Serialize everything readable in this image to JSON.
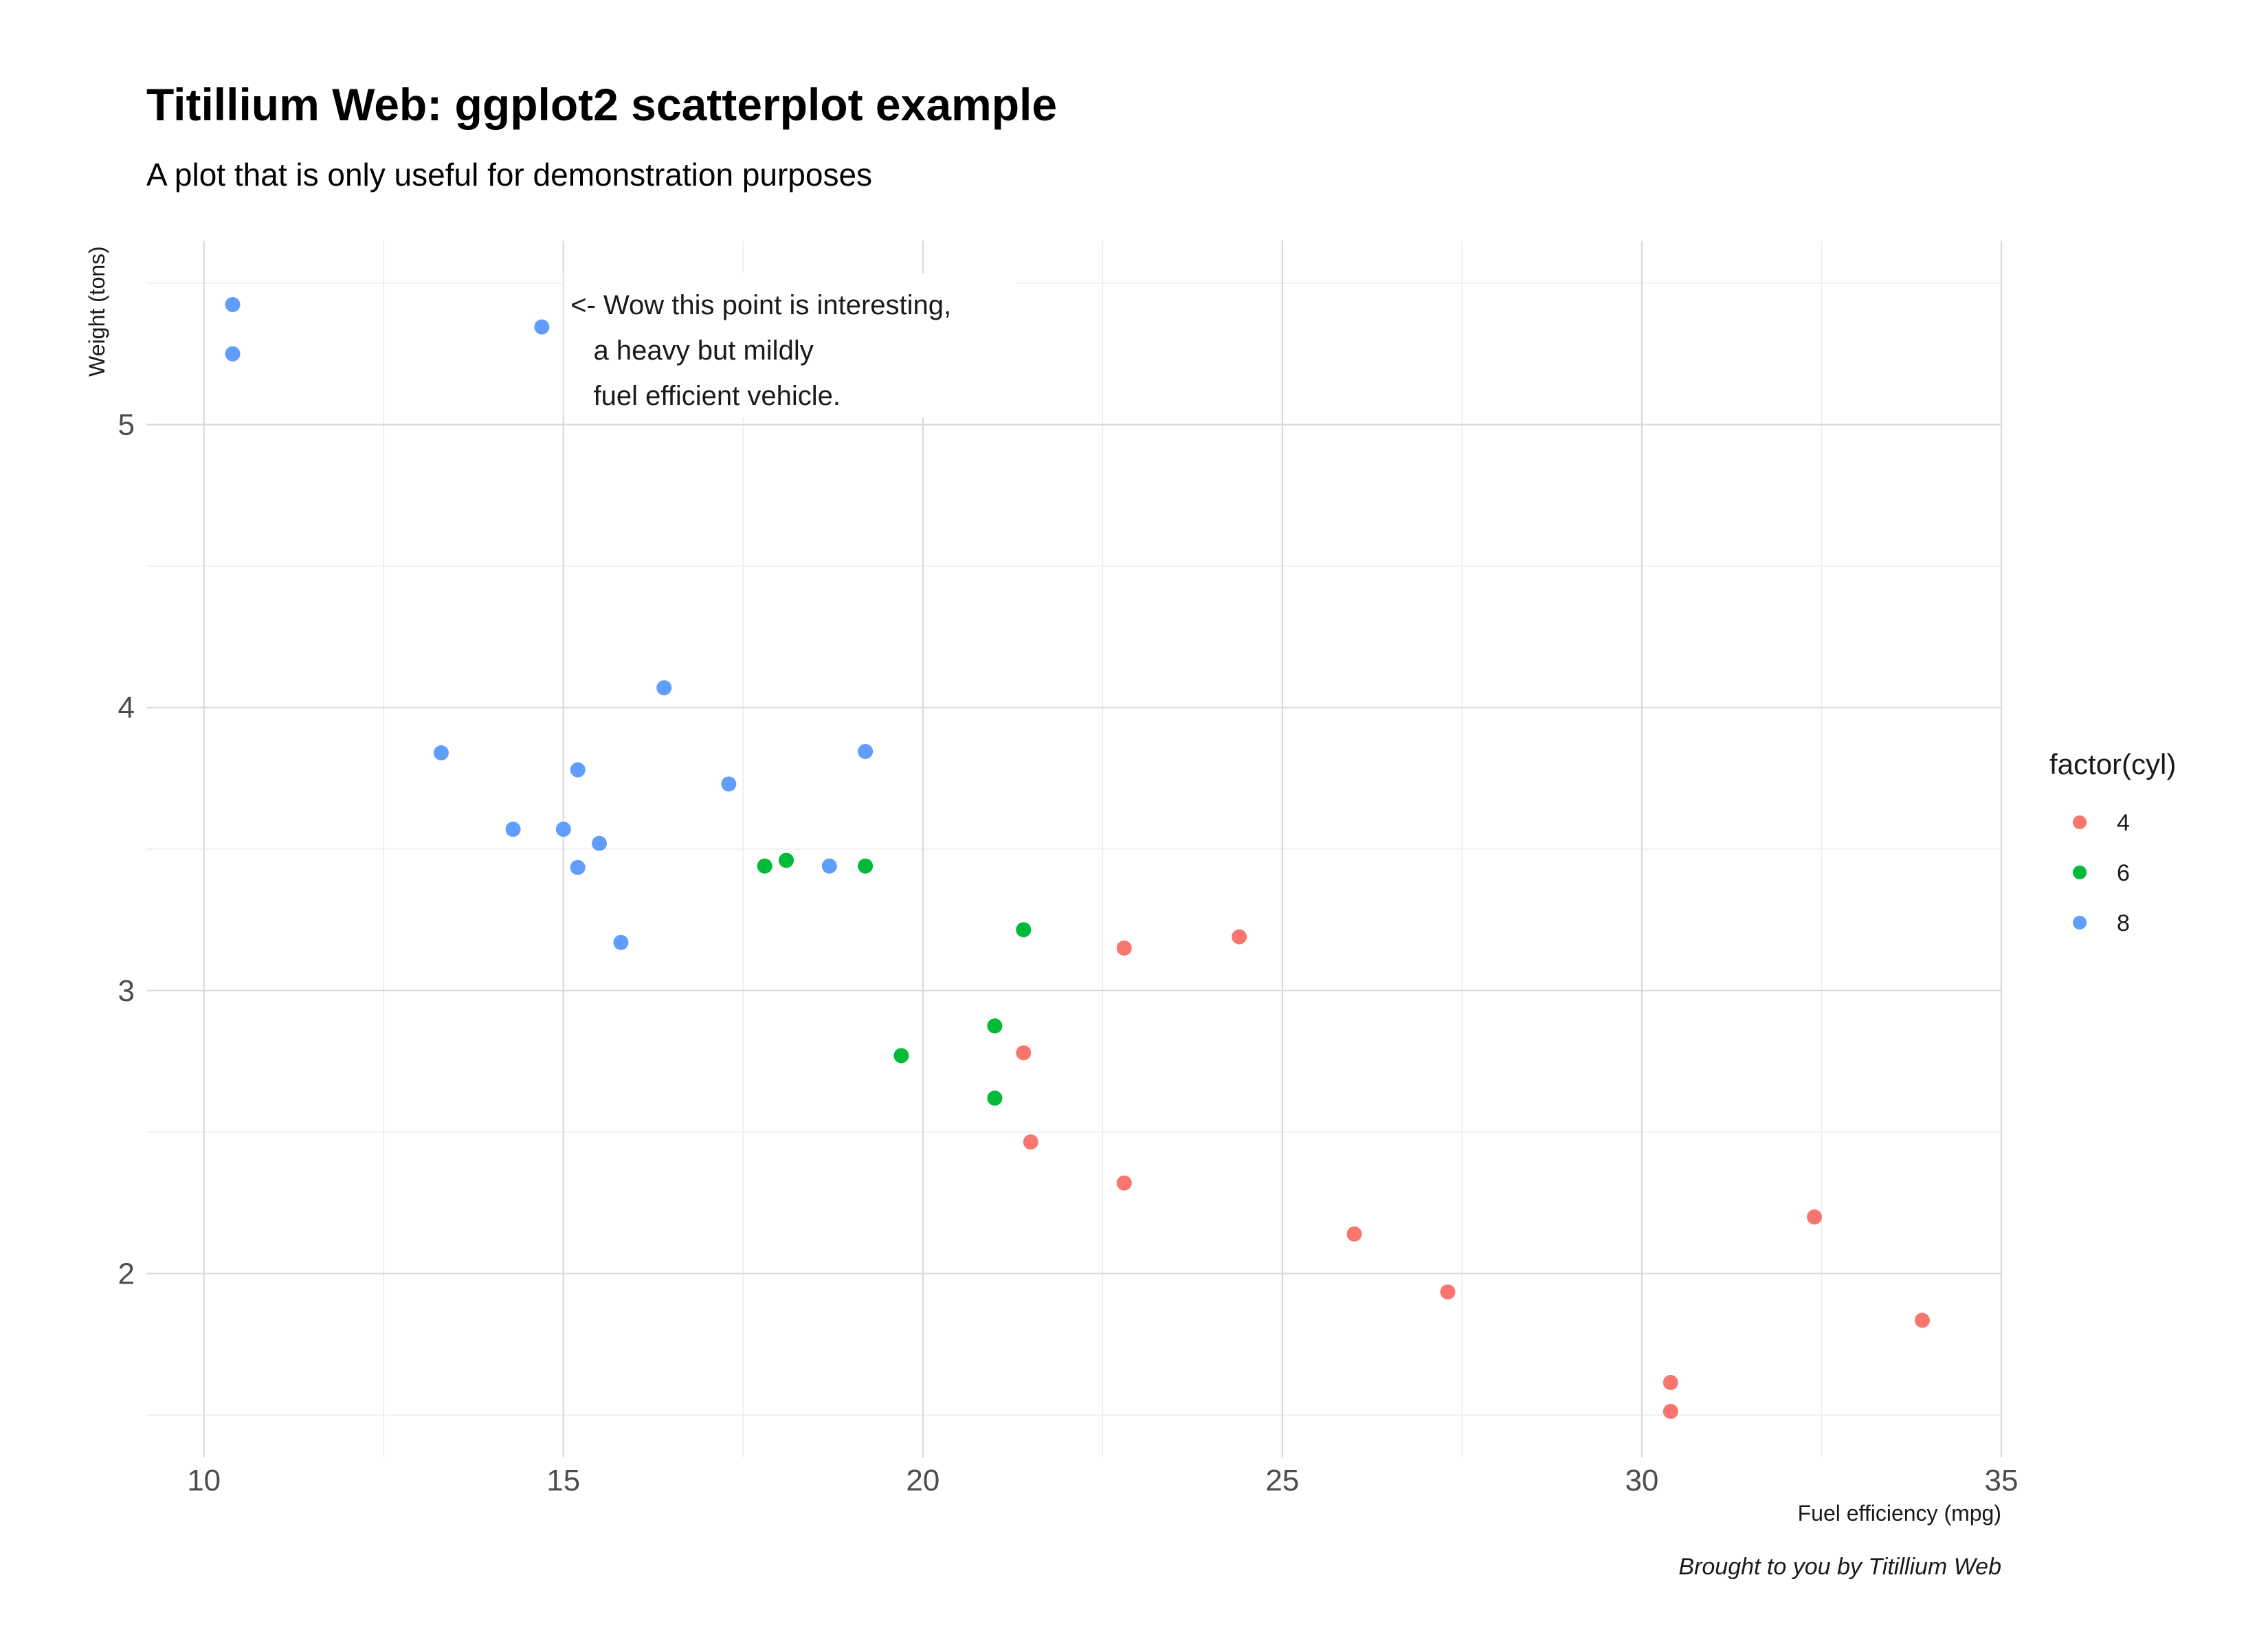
{
  "chart_data": {
    "type": "scatter",
    "title": "Titillium Web: ggplot2 scatterplot example",
    "subtitle": "A plot that is only useful for demonstration purposes",
    "xlabel": "Fuel efficiency (mpg)",
    "ylabel": "Weight (tons)",
    "caption": "Brought to you by Titillium Web",
    "xlim": [
      9.2,
      35.0
    ],
    "ylim": [
      1.35,
      5.65
    ],
    "x_ticks": [
      10,
      15,
      20,
      25,
      30,
      35
    ],
    "y_ticks": [
      2,
      3,
      4,
      5
    ],
    "x_minor": [
      12.5,
      17.5,
      22.5,
      27.5,
      32.5
    ],
    "y_minor": [
      1.5,
      2.5,
      3.5,
      4.5,
      5.5
    ],
    "grid": true,
    "legend": {
      "title": "factor(cyl)",
      "placement": "right",
      "entries": [
        {
          "label": "4",
          "color": "#F8766D"
        },
        {
          "label": "6",
          "color": "#00BA38"
        },
        {
          "label": "8",
          "color": "#619CFF"
        }
      ]
    },
    "annotation": {
      "lines": [
        "<- Wow this point is interesting,",
        "   a heavy but mildly",
        "   fuel efficient vehicle."
      ],
      "x": 15.1,
      "y": 5.39
    },
    "series": [
      {
        "name": "4",
        "color": "#F8766D",
        "points": [
          [
            22.8,
            2.32
          ],
          [
            24.4,
            3.19
          ],
          [
            22.8,
            3.15
          ],
          [
            32.4,
            2.2
          ],
          [
            30.4,
            1.615
          ],
          [
            33.9,
            1.835
          ],
          [
            21.5,
            2.465
          ],
          [
            27.3,
            1.935
          ],
          [
            26.0,
            2.14
          ],
          [
            30.4,
            1.513
          ],
          [
            21.4,
            2.78
          ]
        ]
      },
      {
        "name": "6",
        "color": "#00BA38",
        "points": [
          [
            21.0,
            2.62
          ],
          [
            21.0,
            2.875
          ],
          [
            21.4,
            3.215
          ],
          [
            18.1,
            3.46
          ],
          [
            19.2,
            3.44
          ],
          [
            17.8,
            3.44
          ],
          [
            19.7,
            2.77
          ]
        ]
      },
      {
        "name": "8",
        "color": "#619CFF",
        "points": [
          [
            18.7,
            3.44
          ],
          [
            14.3,
            3.57
          ],
          [
            16.4,
            4.07
          ],
          [
            17.3,
            3.73
          ],
          [
            15.2,
            3.78
          ],
          [
            10.4,
            5.25
          ],
          [
            10.4,
            5.424
          ],
          [
            14.7,
            5.345
          ],
          [
            15.5,
            3.52
          ],
          [
            15.2,
            3.435
          ],
          [
            13.3,
            3.84
          ],
          [
            19.2,
            3.845
          ],
          [
            15.8,
            3.17
          ],
          [
            15.0,
            3.57
          ]
        ]
      }
    ]
  }
}
